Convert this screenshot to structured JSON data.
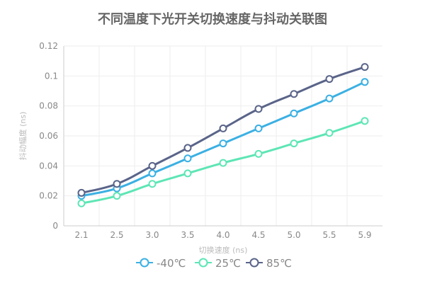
{
  "chart_data": {
    "type": "line",
    "title": "不同温度下光开关切换速度与抖动关联图",
    "xlabel": "切换速度 (ns)",
    "ylabel": "抖动幅度 (ns)",
    "categories": [
      "2.1",
      "2.5",
      "3.0",
      "3.5",
      "4.0",
      "4.5",
      "5.0",
      "5.5",
      "5.9"
    ],
    "ylim": [
      0,
      0.12
    ],
    "yticks": [
      "0",
      "0.02",
      "0.04",
      "0.06",
      "0.08",
      "0.1",
      "0.12"
    ],
    "grid": true,
    "smooth": true,
    "legend_position": "bottom",
    "series": [
      {
        "name": "-40℃",
        "color": "#3bb0e3",
        "values": [
          0.02,
          0.025,
          0.035,
          0.045,
          0.055,
          0.065,
          0.075,
          0.085,
          0.096
        ]
      },
      {
        "name": "25℃",
        "color": "#5de6b5",
        "values": [
          0.015,
          0.02,
          0.028,
          0.035,
          0.042,
          0.048,
          0.055,
          0.062,
          0.07
        ]
      },
      {
        "name": "85℃",
        "color": "#5a6489",
        "values": [
          0.022,
          0.028,
          0.04,
          0.052,
          0.065,
          0.078,
          0.088,
          0.098,
          0.106
        ]
      }
    ]
  }
}
